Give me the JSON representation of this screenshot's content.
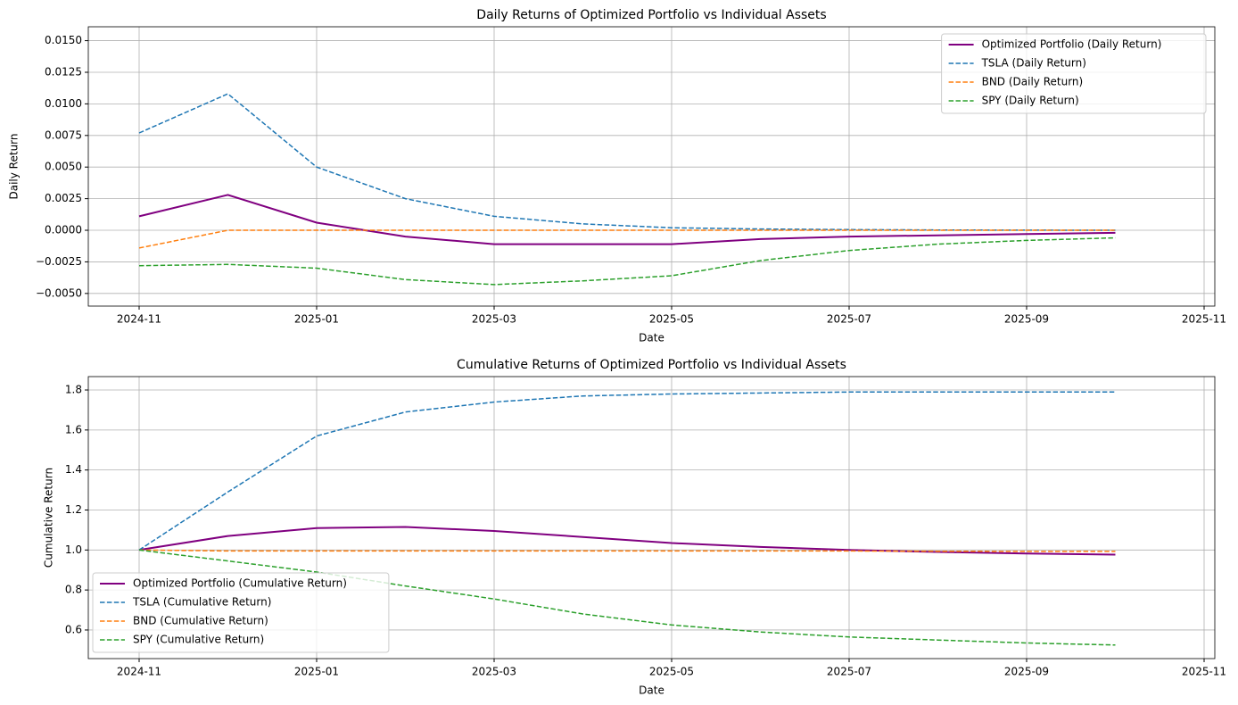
{
  "chart_data": [
    {
      "type": "line",
      "title": "Daily Returns of Optimized Portfolio vs Individual Assets",
      "xlabel": "Date",
      "ylabel": "Daily Return",
      "grid": true,
      "legend": "upper right",
      "x": [
        "2024-11",
        "2024-12",
        "2025-01",
        "2025-02",
        "2025-03",
        "2025-04",
        "2025-05",
        "2025-06",
        "2025-07",
        "2025-08",
        "2025-09",
        "2025-10"
      ],
      "xticks": [
        "2024-11",
        "2025-01",
        "2025-03",
        "2025-05",
        "2025-07",
        "2025-09",
        "2025-11"
      ],
      "ylim": [
        -0.006,
        0.0161
      ],
      "yticks": [
        {
          "value": -0.005,
          "label": "−0.0050"
        },
        {
          "value": -0.0025,
          "label": "−0.0025"
        },
        {
          "value": 0,
          "label": "0.0000"
        },
        {
          "value": 0.0025,
          "label": "0.0025"
        },
        {
          "value": 0.005,
          "label": "0.0050"
        },
        {
          "value": 0.0075,
          "label": "0.0075"
        },
        {
          "value": 0.01,
          "label": "0.0100"
        },
        {
          "value": 0.0125,
          "label": "0.0125"
        },
        {
          "value": 0.015,
          "label": "0.0150"
        }
      ],
      "series": [
        {
          "name": "Optimized Portfolio (Daily Return)",
          "color": "#800080",
          "style": "solid",
          "values": [
            0.0011,
            0.0028,
            0.0006,
            -0.0005,
            -0.0011,
            -0.0011,
            -0.0011,
            -0.0007,
            -0.0005,
            -0.0004,
            -0.0003,
            -0.0002
          ]
        },
        {
          "name": "TSLA (Daily Return)",
          "color": "#1f77b4",
          "style": "dashed",
          "values": [
            0.0077,
            0.0108,
            0.005,
            0.0025,
            0.0011,
            0.0005,
            0.0002,
            0.0001,
            5e-05,
            2e-05,
            1e-05,
            0
          ]
        },
        {
          "name": "BND (Daily Return)",
          "color": "#ff7f0e",
          "style": "dashed",
          "values": [
            -0.0014,
            0,
            0,
            0,
            0,
            0,
            0,
            0,
            0,
            0,
            0,
            0
          ]
        },
        {
          "name": "SPY (Daily Return)",
          "color": "#2ca02c",
          "style": "dashed",
          "values": [
            -0.0028,
            -0.0027,
            -0.003,
            -0.0039,
            -0.0043,
            -0.004,
            -0.0036,
            -0.0024,
            -0.0016,
            -0.0011,
            -0.0008,
            -0.0006
          ]
        }
      ]
    },
    {
      "type": "line",
      "title": "Cumulative Returns of Optimized Portfolio vs Individual Assets",
      "xlabel": "Date",
      "ylabel": "Cumulative Return",
      "grid": true,
      "legend": "lower left",
      "x": [
        "2024-11",
        "2024-12",
        "2025-01",
        "2025-02",
        "2025-03",
        "2025-04",
        "2025-05",
        "2025-06",
        "2025-07",
        "2025-08",
        "2025-09",
        "2025-10"
      ],
      "xticks": [
        "2024-11",
        "2025-01",
        "2025-03",
        "2025-05",
        "2025-07",
        "2025-09",
        "2025-11"
      ],
      "ylim": [
        0.457,
        1.867
      ],
      "yticks": [
        0.6,
        0.8,
        {
          "value": 1,
          "label": "1.0"
        },
        1.2,
        1.4,
        1.6,
        1.8
      ],
      "series": [
        {
          "name": "Optimized Portfolio (Cumulative Return)",
          "color": "#800080",
          "style": "solid",
          "values": [
            1.0,
            1.07,
            1.11,
            1.115,
            1.095,
            1.065,
            1.035,
            1.015,
            1.0,
            0.99,
            0.982,
            0.977
          ]
        },
        {
          "name": "TSLA (Cumulative Return)",
          "color": "#1f77b4",
          "style": "dashed",
          "values": [
            1.0,
            1.29,
            1.57,
            1.69,
            1.74,
            1.77,
            1.78,
            1.785,
            1.79,
            1.79,
            1.79,
            1.79
          ]
        },
        {
          "name": "BND (Cumulative Return)",
          "color": "#ff7f0e",
          "style": "dashed",
          "values": [
            1.0,
            0.995,
            0.995,
            0.995,
            0.995,
            0.995,
            0.995,
            0.995,
            0.995,
            0.994,
            0.993,
            0.993
          ]
        },
        {
          "name": "SPY (Cumulative Return)",
          "color": "#2ca02c",
          "style": "dashed",
          "values": [
            1.0,
            0.945,
            0.89,
            0.82,
            0.755,
            0.68,
            0.625,
            0.59,
            0.565,
            0.55,
            0.535,
            0.525
          ]
        }
      ]
    }
  ]
}
